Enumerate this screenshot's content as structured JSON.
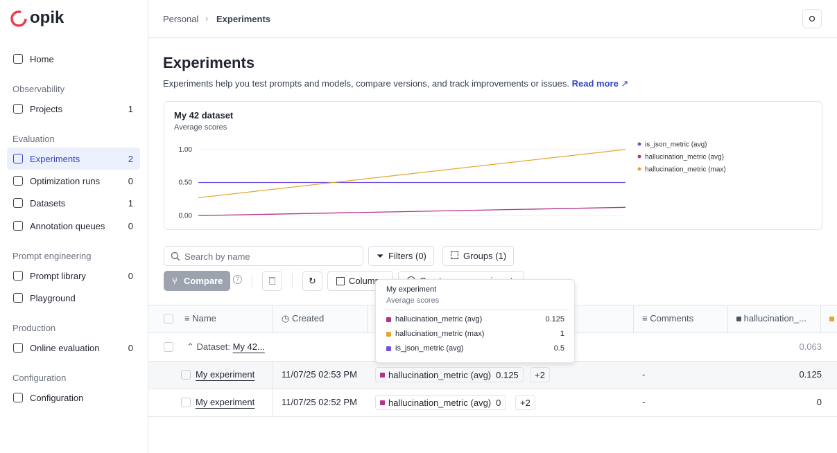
{
  "sidebar": {
    "logo": "opik",
    "home": "Home",
    "groups": [
      {
        "title": "Observability",
        "items": [
          {
            "label": "Projects",
            "count": 1
          }
        ]
      },
      {
        "title": "Evaluation",
        "items": [
          {
            "label": "Experiments",
            "count": 2
          },
          {
            "label": "Optimization runs",
            "count": 0
          },
          {
            "label": "Datasets",
            "count": 1
          },
          {
            "label": "Annotation queues",
            "count": 0
          }
        ]
      },
      {
        "title": "Prompt engineering",
        "items": [
          {
            "label": "Prompt library",
            "count": 0
          },
          {
            "label": "Playground"
          }
        ]
      },
      {
        "title": "Production",
        "items": [
          {
            "label": "Online evaluation",
            "count": 0
          }
        ]
      },
      {
        "title": "Configuration",
        "items": [
          {
            "label": "Configuration"
          }
        ]
      }
    ]
  },
  "header": {
    "breadcrumbs": [
      "Personal",
      "Experiments"
    ]
  },
  "page": {
    "title": "Experiments",
    "description": "Experiments help you test prompts and models, compare versions, and track improvements or issues.",
    "link": "Read more"
  },
  "chart_data": {
    "type": "line",
    "title": "My 42 dataset",
    "subtitle": "Average scores",
    "categories": [
      null,
      null
    ],
    "ylim": [
      -0.06,
      1.05
    ],
    "yticks": [
      {
        "value": 0,
        "label": "0.00"
      },
      {
        "value": 0.5,
        "label": "0.50"
      },
      {
        "value": 1,
        "label": "1.00"
      }
    ],
    "grid": true,
    "legend": "right",
    "series": [
      {
        "name": "is_json_metric (avg)",
        "color": "#6e4fe0",
        "values": [
          0.5,
          0.5
        ]
      },
      {
        "name": "hallucination_metric (avg)",
        "color": "#b5318c",
        "values": [
          0,
          0.125
        ]
      },
      {
        "name": "hallucination_metric (max)",
        "color": "#e3a72f",
        "values": [
          0.27,
          1
        ]
      }
    ]
  },
  "toolbar": {
    "search": "Search by name",
    "filters": "Filters (0)",
    "groups": "Groups (1)",
    "compare": "Compare",
    "columns": "Columns",
    "create": "Create new experiment"
  },
  "tooltip": {
    "title": "My experiment",
    "subtitle": "Average scores",
    "rows": [
      {
        "name": "hallucination_metric (avg)",
        "value": 0.125,
        "color": "#b5318c"
      },
      {
        "name": "hallucination_metric (max)",
        "value": 1,
        "color": "#e3a72f"
      },
      {
        "name": "is_json_metric (avg)",
        "value": 0.5,
        "color": "#6e4fe0"
      }
    ]
  },
  "table": {
    "headers": [
      "Name",
      "Created",
      "Comments",
      "hallucination_..."
    ],
    "group": {
      "label": "Dataset:",
      "name": "My 42...",
      "score": 0.063
    },
    "rows": [
      {
        "name": "My experiment",
        "created": "11/07/25 02:53 PM",
        "tag": "hallucination_metric (avg)",
        "tag_value": 0.125,
        "more": "+2",
        "comments": "-",
        "score": 0.125
      },
      {
        "name": "My experiment",
        "created": "11/07/25 02:52 PM",
        "tag": "hallucination_metric (avg)",
        "tag_value": 0,
        "more": "+2",
        "comments": "-",
        "score": 0
      }
    ]
  }
}
